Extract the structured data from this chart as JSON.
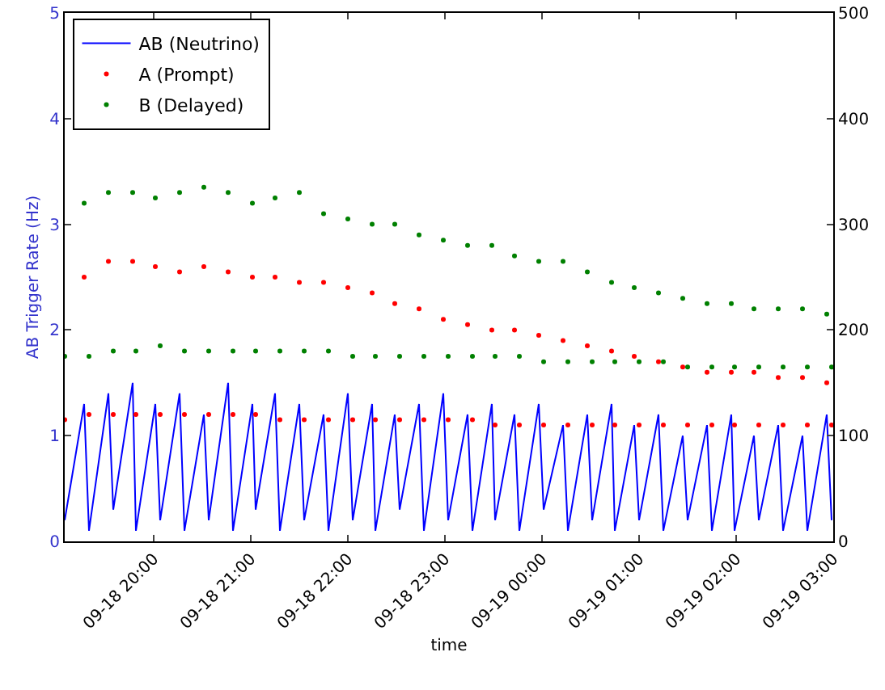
{
  "chart_data": {
    "type": "line",
    "xlabel": "time",
    "ylabel": "AB Trigger Rate (Hz)",
    "x": [
      "--09-18T19:05",
      "--09-18T19:17",
      "--09-18T19:20",
      "--09-18T19:32",
      "--09-18T19:35",
      "--09-18T19:47",
      "--09-18T19:49",
      "--09-18T20:01",
      "--09-18T20:04",
      "--09-18T20:16",
      "--09-18T20:19",
      "--09-18T20:31",
      "--09-18T20:34",
      "--09-18T20:46",
      "--09-18T20:49",
      "--09-18T21:01",
      "--09-18T21:03",
      "--09-18T21:15",
      "--09-18T21:18",
      "--09-18T21:30",
      "--09-18T21:33",
      "--09-18T21:45",
      "--09-18T21:48",
      "--09-18T22:00",
      "--09-18T22:03",
      "--09-18T22:15",
      "--09-18T22:17",
      "--09-18T22:29",
      "--09-18T22:32",
      "--09-18T22:44",
      "--09-18T22:47",
      "--09-18T22:59",
      "--09-18T23:02",
      "--09-18T23:14",
      "--09-18T23:17",
      "--09-18T23:29",
      "--09-18T23:31",
      "--09-18T23:43",
      "--09-18T23:46",
      "--09-18T23:58",
      "--09-19T00:01",
      "--09-19T00:13",
      "--09-19T00:16",
      "--09-19T00:28",
      "--09-19T00:31",
      "--09-19T00:43",
      "--09-19T00:45",
      "--09-19T00:57",
      "--09-19T01:00",
      "--09-19T01:12",
      "--09-19T01:15",
      "--09-19T01:27",
      "--09-19T01:30",
      "--09-19T01:42",
      "--09-19T01:45",
      "--09-19T01:57",
      "--09-19T01:59",
      "--09-19T02:11",
      "--09-19T02:14",
      "--09-19T02:26",
      "--09-19T02:29",
      "--09-19T02:41",
      "--09-19T02:44",
      "--09-19T02:56",
      "--09-19T02:59"
    ],
    "series": [
      {
        "name": "AB (Neutrino)",
        "color": "#0000ff",
        "marker": "none",
        "values": [
          0.2,
          1.3,
          0.1,
          1.4,
          0.3,
          1.5,
          0.1,
          1.3,
          0.2,
          1.4,
          0.1,
          1.2,
          0.2,
          1.5,
          0.1,
          1.3,
          0.3,
          1.4,
          0.1,
          1.3,
          0.2,
          1.2,
          0.1,
          1.4,
          0.2,
          1.3,
          0.1,
          1.2,
          0.3,
          1.3,
          0.1,
          1.4,
          0.2,
          1.2,
          0.1,
          1.3,
          0.2,
          1.2,
          0.1,
          1.3,
          0.3,
          1.1,
          0.1,
          1.2,
          0.2,
          1.3,
          0.1,
          1.1,
          0.2,
          1.2,
          0.1,
          1.0,
          0.2,
          1.1,
          0.1,
          1.2,
          0.1,
          1.0,
          0.2,
          1.1,
          0.1,
          1.0,
          0.1,
          1.2,
          0.2
        ]
      },
      {
        "name": "A (Prompt)",
        "type": "scatter",
        "color": "#ff0000",
        "marker": "circle",
        "axis": "y2",
        "values": [
          115,
          250,
          120,
          265,
          120,
          265,
          120,
          260,
          120,
          255,
          120,
          260,
          120,
          255,
          120,
          250,
          120,
          250,
          115,
          245,
          115,
          245,
          115,
          240,
          115,
          235,
          115,
          225,
          115,
          220,
          115,
          210,
          115,
          205,
          115,
          200,
          110,
          200,
          110,
          195,
          110,
          190,
          110,
          185,
          110,
          180,
          110,
          175,
          110,
          170,
          110,
          165,
          110,
          160,
          110,
          160,
          110,
          160,
          110,
          155,
          110,
          155,
          110,
          150,
          110
        ]
      },
      {
        "name": "B (Delayed)",
        "type": "scatter",
        "color": "#008000",
        "marker": "circle",
        "axis": "y2",
        "values": [
          175,
          320,
          175,
          330,
          180,
          330,
          180,
          325,
          185,
          330,
          180,
          335,
          180,
          330,
          180,
          320,
          180,
          325,
          180,
          330,
          180,
          310,
          180,
          305,
          175,
          300,
          175,
          300,
          175,
          290,
          175,
          285,
          175,
          280,
          175,
          280,
          175,
          270,
          175,
          265,
          170,
          265,
          170,
          255,
          170,
          245,
          170,
          240,
          170,
          235,
          170,
          230,
          165,
          225,
          165,
          225,
          165,
          220,
          165,
          220,
          165,
          220,
          165,
          215,
          165
        ]
      }
    ],
    "xlim": [
      "--09-18T19:05",
      "--09-19T03:00"
    ],
    "xticks": [
      {
        "value": "--09-18T20:00",
        "label": "09-18 20:00"
      },
      {
        "value": "--09-18T21:00",
        "label": "09-18 21:00"
      },
      {
        "value": "--09-18T22:00",
        "label": "09-18 22:00"
      },
      {
        "value": "--09-18T23:00",
        "label": "09-18 23:00"
      },
      {
        "value": "--09-19T00:00",
        "label": "09-19 00:00"
      },
      {
        "value": "--09-19T01:00",
        "label": "09-19 01:00"
      },
      {
        "value": "--09-19T02:00",
        "label": "09-19 02:00"
      },
      {
        "value": "--09-19T03:00",
        "label": "09-19 03:00"
      }
    ],
    "ylim": [
      0,
      5
    ],
    "yticks": [
      0,
      1,
      2,
      3,
      4,
      5
    ],
    "y2lim": [
      0,
      500
    ],
    "y2ticks": [
      0,
      100,
      200,
      300,
      400,
      500
    ],
    "grid": false,
    "legend": "top left"
  }
}
